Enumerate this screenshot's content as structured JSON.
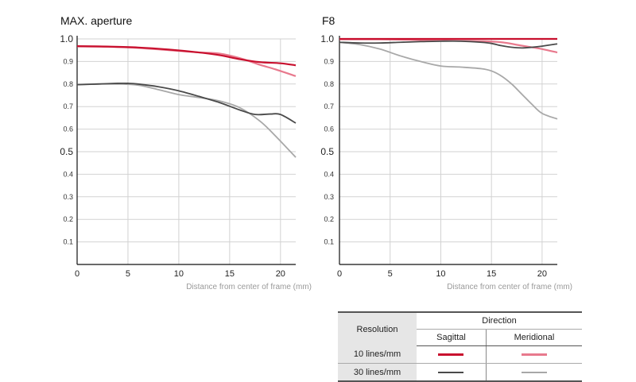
{
  "chart_data": [
    {
      "type": "line",
      "title": "MAX. aperture",
      "xlabel": "Distance from center of frame (mm)",
      "ylabel": "",
      "xlim": [
        0,
        21.5
      ],
      "ylim": [
        0,
        1.0
      ],
      "x_ticks": [
        "0",
        "5",
        "10",
        "15",
        "20"
      ],
      "x_tick_values": [
        0,
        5,
        10,
        15,
        20
      ],
      "y_ticks": [
        "1.0",
        "0.9",
        "0.8",
        "0.7",
        "0.6",
        "0.5",
        "0.4",
        "0.3",
        "0.2",
        "0.1"
      ],
      "y_tick_values": [
        1.0,
        0.9,
        0.8,
        0.7,
        0.6,
        0.5,
        0.4,
        0.3,
        0.2,
        0.1
      ],
      "series": [
        {
          "name": "10 lines/mm Meridional",
          "color": "#e8798d",
          "x": [
            0,
            3,
            6,
            9,
            12,
            14,
            16,
            18,
            19.5,
            21.5
          ],
          "y": [
            0.967,
            0.965,
            0.96,
            0.95,
            0.94,
            0.935,
            0.915,
            0.885,
            0.865,
            0.835
          ]
        },
        {
          "name": "10 lines/mm Sagittal",
          "color": "#c8102e",
          "x": [
            0,
            3,
            6,
            9,
            12,
            14,
            16,
            18,
            20,
            21.5
          ],
          "y": [
            0.968,
            0.966,
            0.962,
            0.953,
            0.94,
            0.928,
            0.91,
            0.897,
            0.892,
            0.883
          ]
        },
        {
          "name": "30 lines/mm Meridional",
          "color": "#a8a8a8",
          "x": [
            0,
            2,
            4,
            6,
            8,
            10,
            12,
            14,
            16,
            18,
            19.5,
            21.5
          ],
          "y": [
            0.797,
            0.8,
            0.8,
            0.795,
            0.775,
            0.753,
            0.74,
            0.725,
            0.695,
            0.635,
            0.57,
            0.475
          ]
        },
        {
          "name": "30 lines/mm Sagittal",
          "color": "#4a4a4a",
          "x": [
            0,
            2,
            4,
            5,
            6,
            8,
            10,
            12,
            14,
            16,
            17.5,
            19,
            20,
            21.5
          ],
          "y": [
            0.797,
            0.8,
            0.803,
            0.803,
            0.8,
            0.788,
            0.77,
            0.745,
            0.718,
            0.685,
            0.665,
            0.667,
            0.665,
            0.627
          ]
        }
      ]
    },
    {
      "type": "line",
      "title": "F8",
      "xlabel": "Distance from center of frame (mm)",
      "ylabel": "",
      "xlim": [
        0,
        21.5
      ],
      "ylim": [
        0,
        1.0
      ],
      "x_ticks": [
        "0",
        "5",
        "10",
        "15",
        "20"
      ],
      "x_tick_values": [
        0,
        5,
        10,
        15,
        20
      ],
      "y_ticks": [
        "1.0",
        "0.9",
        "0.8",
        "0.7",
        "0.6",
        "0.5",
        "0.4",
        "0.3",
        "0.2",
        "0.1"
      ],
      "y_tick_values": [
        1.0,
        0.9,
        0.8,
        0.7,
        0.6,
        0.5,
        0.4,
        0.3,
        0.2,
        0.1
      ],
      "series": [
        {
          "name": "10 lines/mm Meridional",
          "color": "#e8798d",
          "x": [
            0,
            4,
            8,
            11,
            14,
            16,
            18,
            20,
            21.5
          ],
          "y": [
            0.998,
            0.998,
            0.995,
            0.992,
            0.99,
            0.985,
            0.97,
            0.955,
            0.94
          ]
        },
        {
          "name": "10 lines/mm Sagittal",
          "color": "#c8102e",
          "x": [
            0,
            5,
            10,
            15,
            20,
            21.5
          ],
          "y": [
            1.0,
            1.0,
            1.0,
            1.0,
            1.0,
            1.0
          ]
        },
        {
          "name": "30 lines/mm Meridional",
          "color": "#a8a8a8",
          "x": [
            0,
            2,
            4,
            6,
            8,
            10,
            12,
            14,
            15,
            16,
            17,
            18,
            19,
            20,
            21.5
          ],
          "y": [
            0.985,
            0.975,
            0.955,
            0.925,
            0.9,
            0.88,
            0.875,
            0.868,
            0.858,
            0.835,
            0.8,
            0.755,
            0.71,
            0.67,
            0.645
          ]
        },
        {
          "name": "30 lines/mm Sagittal",
          "color": "#4a4a4a",
          "x": [
            0,
            2,
            4,
            6,
            8,
            10,
            12,
            14,
            15,
            16,
            17,
            18,
            19,
            20,
            21.5
          ],
          "y": [
            0.985,
            0.982,
            0.982,
            0.985,
            0.988,
            0.99,
            0.99,
            0.985,
            0.98,
            0.97,
            0.963,
            0.96,
            0.963,
            0.968,
            0.978
          ]
        }
      ]
    }
  ],
  "legend": {
    "resolution_label": "Resolution",
    "direction_label": "Direction",
    "sagittal_label": "Sagittal",
    "meridional_label": "Meridional",
    "rows": [
      {
        "label": "10 lines/mm",
        "sagittal_color": "#c8102e",
        "meridional_color": "#e8798d"
      },
      {
        "label": "30 lines/mm",
        "sagittal_color": "#4a4a4a",
        "meridional_color": "#a8a8a8"
      }
    ]
  }
}
